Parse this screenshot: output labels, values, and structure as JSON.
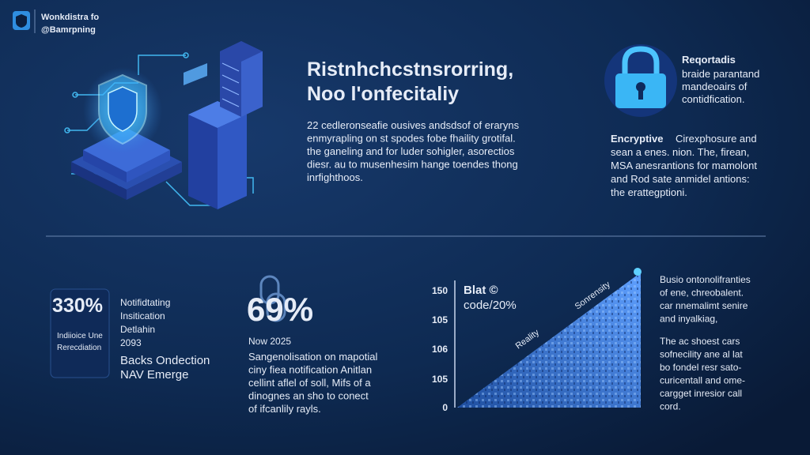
{
  "logo": {
    "line1": "Wonkdistra fo",
    "line2": "@Bamrpning"
  },
  "headline": [
    "Ristnhchcstnsrorring,",
    "Noo l'onfecitaliy"
  ],
  "intro": [
    "22 cedleronseafie ousives andsdsof of eraryns",
    "enmyrapling on st spodes fobe fhaility grotifal.",
    "the ganeling and for luder sohigler, asorectios",
    "diesr. au to musenhesim hange toendes thong",
    "inrfighthoos."
  ],
  "lock_panel": {
    "title": "Reqortadis",
    "lines": [
      "braide parantand",
      "mandeoairs of",
      "contidfication."
    ]
  },
  "encryptive": {
    "lead": "Encryptive",
    "first": "Cirexphosure and",
    "lines": [
      "sean a enes. nion. The, firean,",
      "MSA anesrantions for mamolont",
      "and Rod sate anmidel antions:",
      "the erattegptioni."
    ]
  },
  "stat_box": {
    "value": "330%",
    "lines": [
      "Indiioice Une",
      "Rerecdiation"
    ]
  },
  "notify": {
    "lines": [
      "Notifidtating",
      "Insitication",
      "Detlahin",
      "2093"
    ],
    "accent": [
      "Backs Ondection",
      "NAV Emerge"
    ]
  },
  "stat_69": {
    "value": "69%",
    "sub": "Now 2025",
    "lines": [
      "Sangenolisation on mapotial",
      "ciny fiea notification Anitlan",
      "cellint aflel of soll, Mifs of a",
      "dinognes an sho to conect",
      "of ifcanlily rayls."
    ]
  },
  "graph": {
    "ticks": [
      "150",
      "105",
      "106",
      "105",
      "0"
    ],
    "label1": "Blat ©",
    "label2": "code/20%",
    "edge1": "Reality",
    "edge2": "Sonrensity"
  },
  "right_bottom": {
    "lines": [
      "Busio ontonolifranties",
      "of ene, chreobalent.",
      "car nnemalimt senire",
      "and inyalkiag,"
    ],
    "lines2": [
      "The ac shoest cars",
      "sofnecility ane al lat",
      "bo fondel resr sato-",
      "curicentall and ome-",
      "cargget inresior call",
      "cord."
    ]
  }
}
